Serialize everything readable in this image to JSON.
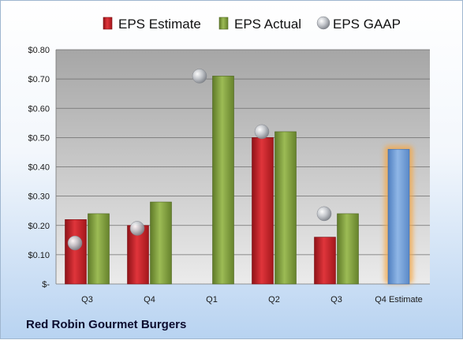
{
  "company_name": "Red Robin Gourmet Burgers",
  "colors": {
    "estimate": "#c0232a",
    "actual": "#7f9b3c",
    "gaap": "#b0b4bb",
    "q4_estimate": "#6f9bd6",
    "highlight": "#f5a94a"
  },
  "chart_data": {
    "type": "bar",
    "title": "",
    "xlabel": "",
    "ylabel": "",
    "ylim": [
      0,
      0.8
    ],
    "y_ticks": [
      "$-",
      "$0.10",
      "$0.20",
      "$0.30",
      "$0.40",
      "$0.50",
      "$0.60",
      "$0.70",
      "$0.80"
    ],
    "categories": [
      "Q3",
      "Q4",
      "Q1",
      "Q2",
      "Q3",
      "Q4 Estimate"
    ],
    "legend_position": "top",
    "grid": true,
    "series": [
      {
        "name": "EPS Estimate",
        "type": "bar",
        "values": [
          0.22,
          0.2,
          null,
          0.5,
          0.16,
          null
        ]
      },
      {
        "name": "EPS Actual",
        "type": "bar",
        "values": [
          0.24,
          0.28,
          0.71,
          0.52,
          0.24,
          null
        ]
      },
      {
        "name": "EPS GAAP",
        "type": "marker",
        "values": [
          0.14,
          0.19,
          0.71,
          0.52,
          0.24,
          null
        ]
      }
    ],
    "forecast": {
      "category": "Q4 Estimate",
      "value": 0.46
    }
  }
}
